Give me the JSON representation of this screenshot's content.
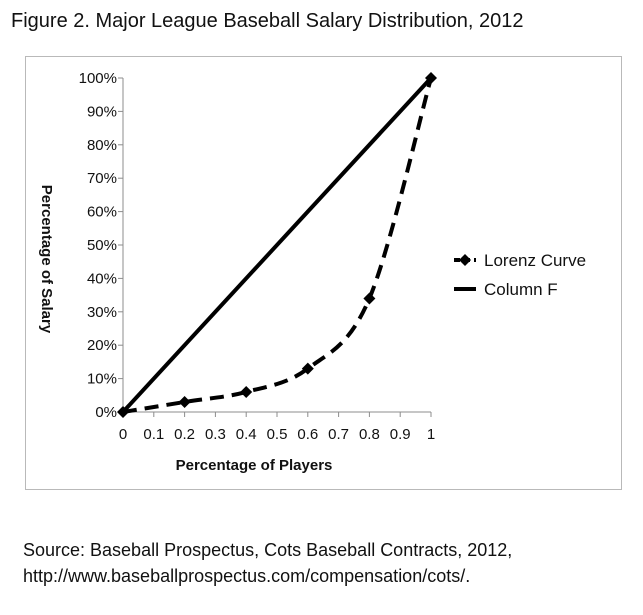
{
  "figure": {
    "title": "Figure 2. Major League Baseball Salary Distribution, 2012"
  },
  "source": {
    "line1": "Source:  Baseball Prospectus, Cots Baseball Contracts, 2012,",
    "line2": "http://www.baseballprospectus.com/compensation/cots/."
  },
  "chart_data": {
    "type": "line",
    "title": "",
    "xlabel": "Percentage of Players",
    "ylabel": "Percentage of Salary",
    "xlim": [
      0,
      1
    ],
    "ylim": [
      0,
      100
    ],
    "x_tick_labels": [
      "0",
      "0.1",
      "0.2",
      "0.3",
      "0.4",
      "0.5",
      "0.6",
      "0.7",
      "0.8",
      "0.9",
      "1"
    ],
    "y_tick_labels": [
      "0%",
      "10%",
      "20%",
      "30%",
      "40%",
      "50%",
      "60%",
      "70%",
      "80%",
      "90%",
      "100%"
    ],
    "grid": false,
    "legend_position": "right",
    "series": [
      {
        "name": "Lorenz Curve",
        "style": "dashed",
        "marker": "diamond",
        "color": "#000000",
        "x": [
          0,
          0.2,
          0.4,
          0.6,
          0.8,
          1.0
        ],
        "y": [
          0,
          3,
          6,
          13,
          34,
          100
        ]
      },
      {
        "name": "Column F",
        "style": "solid",
        "marker": "none",
        "color": "#000000",
        "x": [
          0,
          1
        ],
        "y": [
          0,
          100
        ]
      }
    ]
  }
}
